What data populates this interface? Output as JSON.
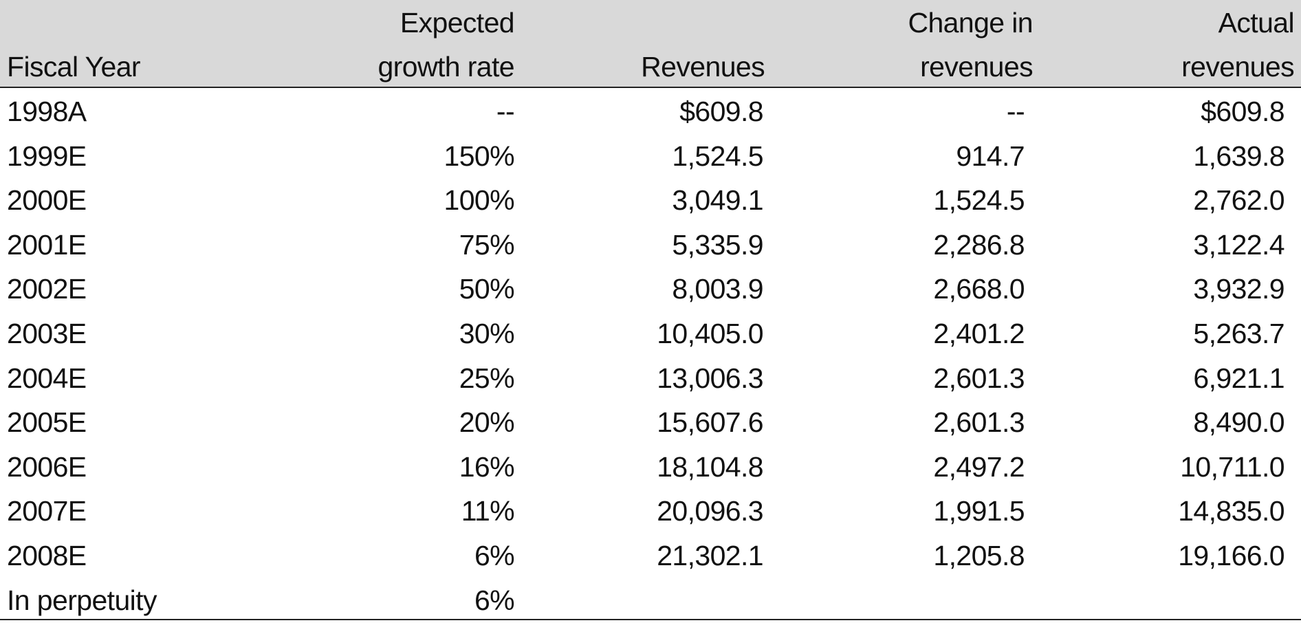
{
  "table": {
    "headers": {
      "fiscal_year": [
        "",
        "Fiscal Year"
      ],
      "expected_growth_rate": [
        "Expected",
        "growth rate"
      ],
      "revenues": [
        "",
        "Revenues"
      ],
      "change_in_revenues": [
        "Change in",
        "revenues"
      ],
      "actual_revenues": [
        "Actual",
        "revenues"
      ]
    },
    "rows": [
      {
        "year": "1998A",
        "growth": "--",
        "revenues": "$609.8",
        "change": "--",
        "actual": "$609.8"
      },
      {
        "year": "1999E",
        "growth": "150%",
        "revenues": "1,524.5",
        "change": "914.7",
        "actual": "1,639.8"
      },
      {
        "year": "2000E",
        "growth": "100%",
        "revenues": "3,049.1",
        "change": "1,524.5",
        "actual": "2,762.0"
      },
      {
        "year": "2001E",
        "growth": "75%",
        "revenues": "5,335.9",
        "change": "2,286.8",
        "actual": "3,122.4"
      },
      {
        "year": "2002E",
        "growth": "50%",
        "revenues": "8,003.9",
        "change": "2,668.0",
        "actual": "3,932.9"
      },
      {
        "year": "2003E",
        "growth": "30%",
        "revenues": "10,405.0",
        "change": "2,401.2",
        "actual": "5,263.7"
      },
      {
        "year": "2004E",
        "growth": "25%",
        "revenues": "13,006.3",
        "change": "2,601.3",
        "actual": "6,921.1"
      },
      {
        "year": "2005E",
        "growth": "20%",
        "revenues": "15,607.6",
        "change": "2,601.3",
        "actual": "8,490.0"
      },
      {
        "year": "2006E",
        "growth": "16%",
        "revenues": "18,104.8",
        "change": "2,497.2",
        "actual": "10,711.0"
      },
      {
        "year": "2007E",
        "growth": "11%",
        "revenues": "20,096.3",
        "change": "1,991.5",
        "actual": "14,835.0"
      },
      {
        "year": "2008E",
        "growth": "6%",
        "revenues": "21,302.1",
        "change": "1,205.8",
        "actual": "19,166.0"
      },
      {
        "year": "In perpetuity",
        "growth": "6%",
        "revenues": "",
        "change": "",
        "actual": ""
      }
    ]
  },
  "colors": {
    "header_background": "#d9d9d9",
    "text": "#111111",
    "rule": "#222222"
  }
}
